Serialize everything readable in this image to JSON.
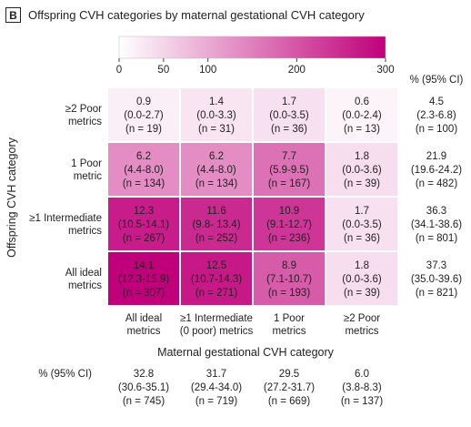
{
  "panel": {
    "badge": "B",
    "title": "Offspring CVH categories by maternal gestational CVH category"
  },
  "chart_data": {
    "type": "heatmap",
    "title": "Offspring CVH categories by maternal gestational CVH category",
    "xlabel": "Maternal gestational CVH category",
    "ylabel": "Offspring CVH category",
    "x_categories": [
      [
        "All ideal",
        "metrics"
      ],
      [
        "≥1 Intermediate",
        "(0 poor) metrics"
      ],
      [
        "1 Poor",
        "metrics"
      ],
      [
        "≥2 Poor",
        "metrics"
      ]
    ],
    "y_categories": [
      [
        "≥2 Poor",
        "metrics"
      ],
      [
        "1 Poor",
        "metric"
      ],
      [
        "≥1 Intermediate",
        "metrics"
      ],
      [
        "All ideal",
        "metrics"
      ]
    ],
    "colorbar": {
      "range": [
        0,
        300
      ],
      "ticks": [
        0,
        50,
        100,
        200,
        300
      ],
      "color_low": "#ffffff",
      "color_high": "#c0007a"
    },
    "cells": [
      [
        {
          "pct": "0.9",
          "ci": "(0.0-2.7)",
          "n": "(n = 19)",
          "count": 19
        },
        {
          "pct": "1.4",
          "ci": "(0.0-3.3)",
          "n": "(n = 31)",
          "count": 31
        },
        {
          "pct": "1.7",
          "ci": "(0.0-3.5)",
          "n": "(n = 36)",
          "count": 36
        },
        {
          "pct": "0.6",
          "ci": "(0.0-2.4)",
          "n": "(n = 13)",
          "count": 13
        }
      ],
      [
        {
          "pct": "6.2",
          "ci": "(4.4-8.0)",
          "n": "(n = 134)",
          "count": 134
        },
        {
          "pct": "6.2",
          "ci": "(4.4-8.0)",
          "n": "(n = 134)",
          "count": 134
        },
        {
          "pct": "7.7",
          "ci": "(5.9-9.5)",
          "n": "(n = 167)",
          "count": 167
        },
        {
          "pct": "1.8",
          "ci": "(0.0-3.6)",
          "n": "(n = 39)",
          "count": 39
        }
      ],
      [
        {
          "pct": "12.3",
          "ci": "(10.5-14.1)",
          "n": "(n = 267)",
          "count": 267
        },
        {
          "pct": "11.6",
          "ci": "(9.8- 13.4)",
          "n": "(n = 252)",
          "count": 252
        },
        {
          "pct": "10.9",
          "ci": "(9.1-12.7)",
          "n": "(n = 236)",
          "count": 236
        },
        {
          "pct": "1.7",
          "ci": "(0.0-3.5)",
          "n": "(n = 36)",
          "count": 36
        }
      ],
      [
        {
          "pct": "14.1",
          "ci": "(12.3-15.9)",
          "n": "(n = 307)",
          "count": 307
        },
        {
          "pct": "12.5",
          "ci": "(10.7-14.3)",
          "n": "(n = 271)",
          "count": 271
        },
        {
          "pct": "8.9",
          "ci": "(7.1-10.7)",
          "n": "(n = 193)",
          "count": 193
        },
        {
          "pct": "1.8",
          "ci": "(0.0-3.6)",
          "n": "(n = 39)",
          "count": 39
        }
      ]
    ],
    "row_totals_header": "% (95% CI)",
    "row_totals": [
      {
        "pct": "4.5",
        "ci": "(2.3-6.8)",
        "n": "(n = 100)"
      },
      {
        "pct": "21.9",
        "ci": "(19.6-24.2)",
        "n": "(n = 482)"
      },
      {
        "pct": "36.3",
        "ci": "(34.1-38.6)",
        "n": "(n = 801)"
      },
      {
        "pct": "37.3",
        "ci": "(35.0-39.6)",
        "n": "(n = 821)"
      }
    ],
    "col_totals_header": "% (95% CI)",
    "col_totals": [
      {
        "pct": "32.8",
        "ci": "(30.6-35.1)",
        "n": "(n = 745)"
      },
      {
        "pct": "31.7",
        "ci": "(29.4-34.0)",
        "n": "(n = 719)"
      },
      {
        "pct": "29.5",
        "ci": "(27.2-31.7)",
        "n": "(n = 669)"
      },
      {
        "pct": "6.0",
        "ci": "(3.8-8.3)",
        "n": "(n = 137)"
      }
    ]
  }
}
